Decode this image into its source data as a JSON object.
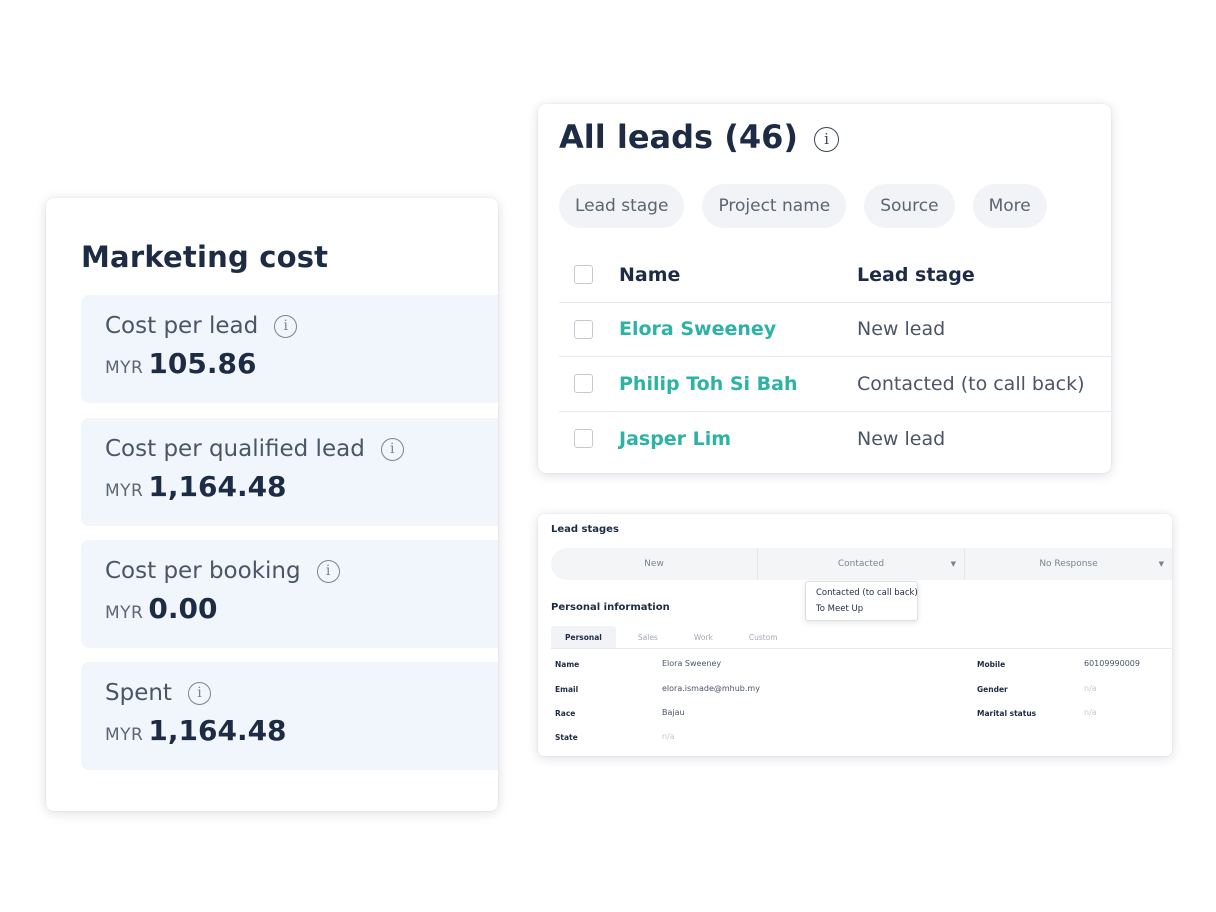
{
  "marketing_cost": {
    "title": "Marketing cost",
    "metrics": [
      {
        "label": "Cost per lead",
        "currency": "MYR",
        "value": "105.86"
      },
      {
        "label": "Cost per qualified lead",
        "currency": "MYR",
        "value": "1,164.48"
      },
      {
        "label": "Cost per booking",
        "currency": "MYR",
        "value": "0.00"
      },
      {
        "label": "Spent",
        "currency": "MYR",
        "value": "1,164.48"
      }
    ]
  },
  "all_leads": {
    "title": "All leads (46)",
    "filters": [
      "Lead stage",
      "Project name",
      "Source",
      "More"
    ],
    "columns": {
      "name": "Name",
      "lead_stage": "Lead stage"
    },
    "rows": [
      {
        "name": "Elora Sweeney",
        "stage": "New lead"
      },
      {
        "name": "Philip Toh Si Bah",
        "stage": "Contacted (to call back)"
      },
      {
        "name": "Jasper Lim",
        "stage": "New lead"
      }
    ]
  },
  "lead_detail": {
    "stages_title": "Lead stages",
    "stages": [
      "New",
      "Contacted",
      "No Response"
    ],
    "dropdown_options": [
      "Contacted (to call back)",
      "To Meet Up"
    ],
    "personal_title": "Personal information",
    "tabs": [
      "Personal",
      "Sales",
      "Work",
      "Custom"
    ],
    "fields": {
      "name": {
        "label": "Name",
        "value": "Elora Sweeney"
      },
      "email": {
        "label": "Email",
        "value": "elora.ismade@mhub.my"
      },
      "race": {
        "label": "Race",
        "value": "Bajau"
      },
      "state": {
        "label": "State",
        "value": "n/a"
      },
      "mobile": {
        "label": "Mobile",
        "value": "60109990009"
      },
      "gender": {
        "label": "Gender",
        "value": "n/a"
      },
      "marital": {
        "label": "Marital status",
        "value": "n/a"
      }
    }
  },
  "colors": {
    "accent": "#2db3a6",
    "metric_bg": "#f0f6fc",
    "text_dark": "#1d2b44"
  },
  "icons": {
    "info": "info-icon",
    "checkbox": "checkbox-icon",
    "caret": "caret-down-icon"
  }
}
